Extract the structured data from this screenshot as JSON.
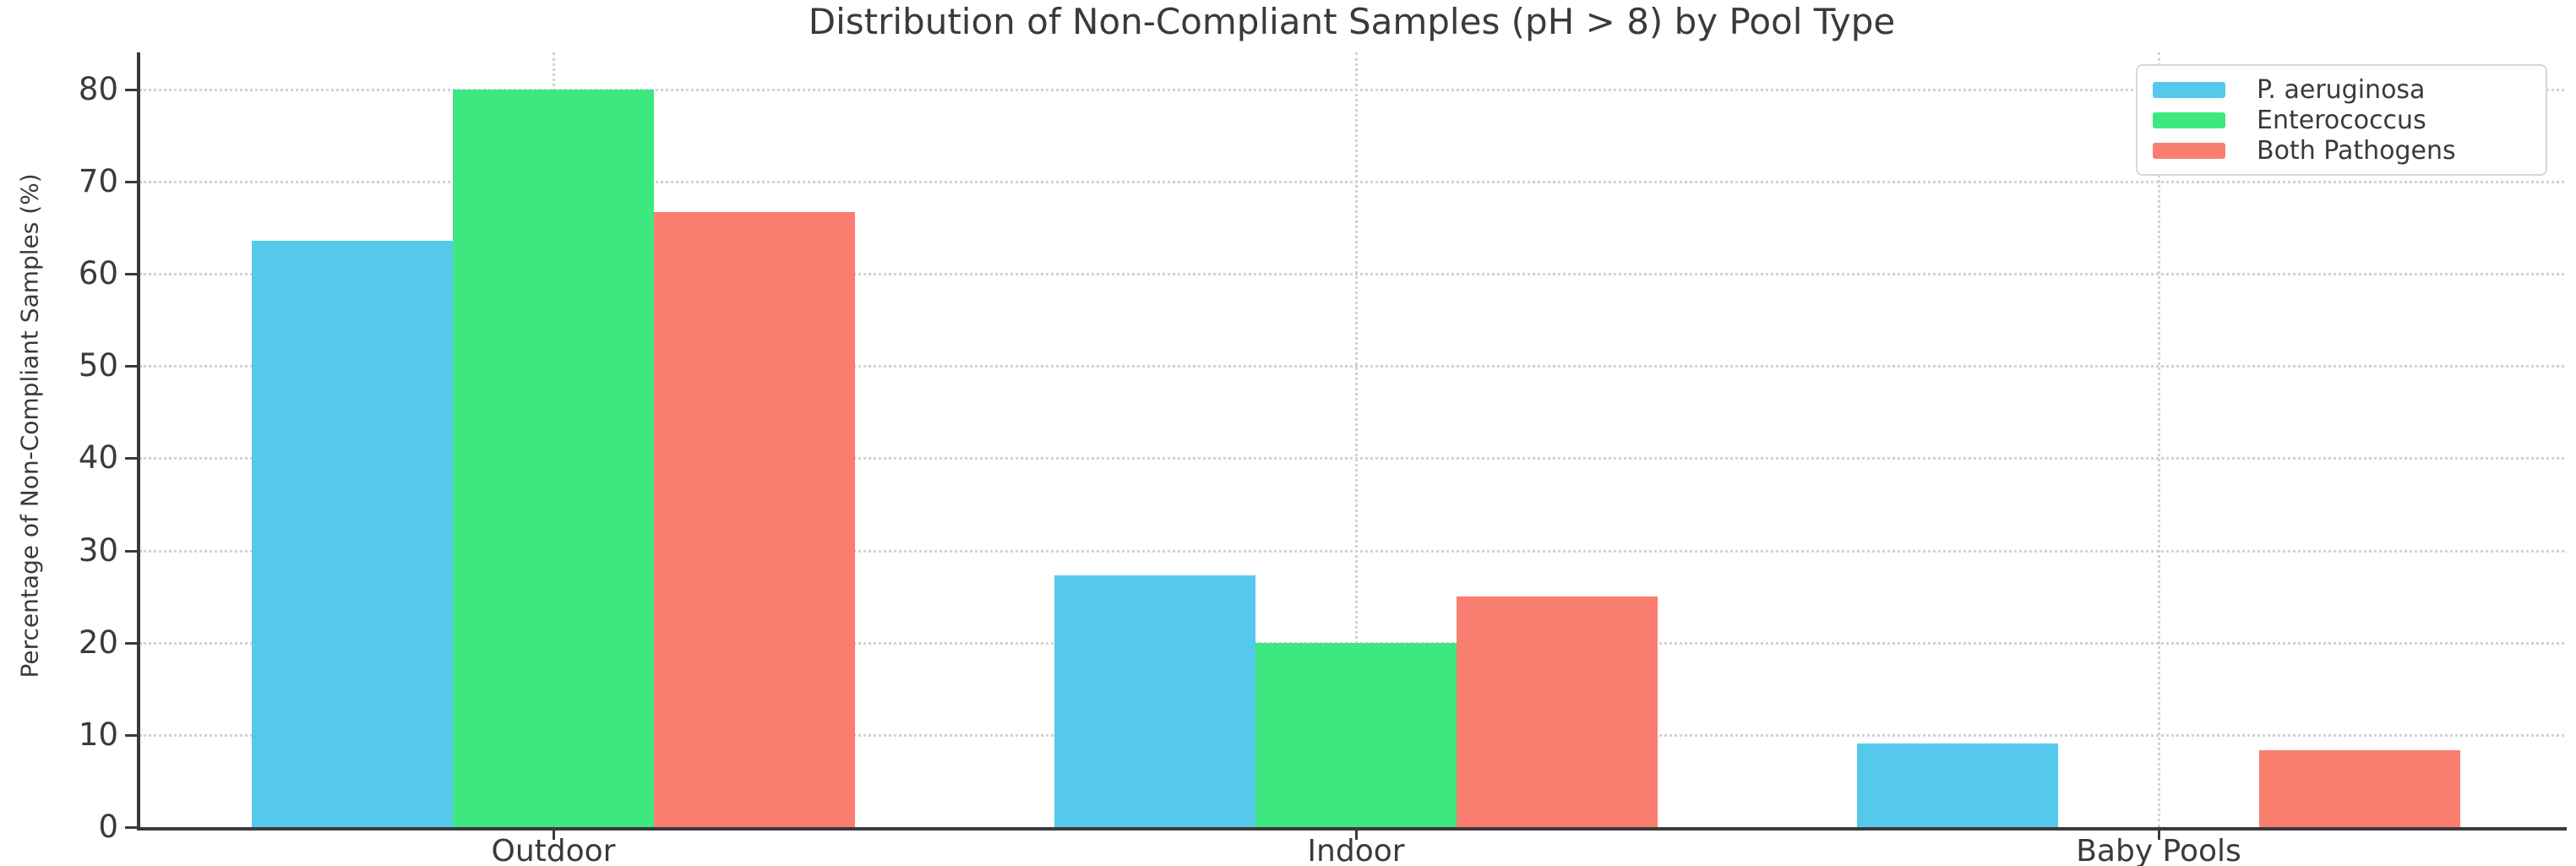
{
  "chart_data": {
    "type": "bar",
    "title": "Distribution of Non-Compliant Samples (pH > 8) by Pool Type",
    "xlabel": "",
    "ylabel": "Percentage of Non-Compliant Samples (%)",
    "categories": [
      "Outdoor",
      "Indoor",
      "Baby Pools"
    ],
    "series": [
      {
        "name": "P. aeruginosa",
        "color": "#54C9EB",
        "values": [
          63.6,
          27.3,
          9.1
        ]
      },
      {
        "name": "Enterococcus",
        "color": "#3EE880",
        "values": [
          80,
          20,
          0
        ]
      },
      {
        "name": "Both Pathogens",
        "color": "#FA7E70",
        "values": [
          66.7,
          25,
          8.3
        ]
      }
    ],
    "ylim": [
      0,
      84
    ],
    "yticks": [
      0,
      10,
      20,
      30,
      40,
      50,
      60,
      70,
      80
    ],
    "grid": true,
    "grid_style": "dotted",
    "legend_position": "upper right",
    "colors": {
      "spine": "#3a3a3a",
      "grid": "#d2d2d2",
      "text": "#3a3a3a",
      "background": "#ffffff"
    }
  }
}
